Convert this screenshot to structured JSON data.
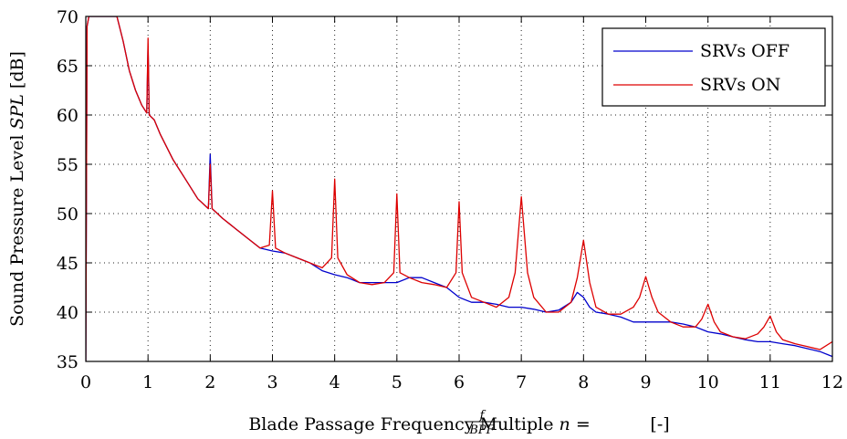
{
  "chart_data": {
    "type": "line",
    "xlabel": "Blade Passage Frequency Multiple",
    "xlabel_math": {
      "var": "n",
      "eq": "=",
      "num": "f",
      "den": "BPF",
      "unit": "[-]"
    },
    "ylabel": "Sound Pressure Level",
    "ylabel_math": {
      "var": "SPL",
      "unit": "[dB]"
    },
    "xlim": [
      0,
      12
    ],
    "ylim": [
      35,
      70
    ],
    "xticks": [
      0,
      1,
      2,
      3,
      4,
      5,
      6,
      7,
      8,
      9,
      10,
      11,
      12
    ],
    "yticks": [
      35,
      40,
      45,
      50,
      55,
      60,
      65,
      70
    ],
    "grid": true,
    "legend_position": "top-right",
    "series": [
      {
        "name": "SRVs OFF",
        "color": "#0000cc",
        "x": [
          0.0,
          0.02,
          0.05,
          0.1,
          0.2,
          0.3,
          0.4,
          0.5,
          0.6,
          0.7,
          0.8,
          0.9,
          0.98,
          1.0,
          1.02,
          1.1,
          1.2,
          1.4,
          1.6,
          1.8,
          1.97,
          2.0,
          2.03,
          2.2,
          2.4,
          2.6,
          2.8,
          3.0,
          3.2,
          3.4,
          3.6,
          3.8,
          4.0,
          4.2,
          4.4,
          4.6,
          4.8,
          5.0,
          5.2,
          5.4,
          5.6,
          5.8,
          6.0,
          6.2,
          6.4,
          6.6,
          6.8,
          7.0,
          7.2,
          7.4,
          7.6,
          7.8,
          7.9,
          8.0,
          8.1,
          8.2,
          8.4,
          8.6,
          8.8,
          9.0,
          9.2,
          9.4,
          9.6,
          9.8,
          10.0,
          10.2,
          10.4,
          10.6,
          10.8,
          11.0,
          11.2,
          11.4,
          11.6,
          11.8,
          12.0
        ],
        "y": [
          35.0,
          69.0,
          70.0,
          70.0,
          70.0,
          70.0,
          70.0,
          70.0,
          67.5,
          64.5,
          62.5,
          61.0,
          60.2,
          67.0,
          60.0,
          59.5,
          58.0,
          55.5,
          53.5,
          51.5,
          50.5,
          56.0,
          50.5,
          49.5,
          48.5,
          47.5,
          46.5,
          46.2,
          46.0,
          45.5,
          45.0,
          44.2,
          43.8,
          43.5,
          43.0,
          43.0,
          43.0,
          43.0,
          43.5,
          43.5,
          43.0,
          42.5,
          41.5,
          41.0,
          41.0,
          40.8,
          40.5,
          40.5,
          40.3,
          40.0,
          40.2,
          41.0,
          42.0,
          41.5,
          40.5,
          40.0,
          39.8,
          39.5,
          39.0,
          39.0,
          39.0,
          39.0,
          38.8,
          38.5,
          38.0,
          37.8,
          37.5,
          37.2,
          37.0,
          37.0,
          36.8,
          36.6,
          36.3,
          36.0,
          35.5
        ]
      },
      {
        "name": "SRVs ON",
        "color": "#dd0000",
        "x": [
          0.0,
          0.02,
          0.05,
          0.1,
          0.2,
          0.3,
          0.4,
          0.5,
          0.6,
          0.7,
          0.8,
          0.9,
          0.98,
          1.0,
          1.02,
          1.1,
          1.2,
          1.4,
          1.6,
          1.8,
          1.97,
          2.0,
          2.03,
          2.2,
          2.4,
          2.6,
          2.8,
          2.95,
          3.0,
          3.05,
          3.2,
          3.4,
          3.6,
          3.8,
          3.95,
          4.0,
          4.05,
          4.2,
          4.4,
          4.6,
          4.8,
          4.95,
          5.0,
          5.05,
          5.2,
          5.4,
          5.6,
          5.8,
          5.95,
          6.0,
          6.05,
          6.2,
          6.4,
          6.6,
          6.8,
          6.9,
          7.0,
          7.1,
          7.2,
          7.4,
          7.6,
          7.8,
          7.9,
          8.0,
          8.1,
          8.2,
          8.4,
          8.6,
          8.8,
          8.9,
          9.0,
          9.1,
          9.2,
          9.4,
          9.6,
          9.8,
          9.9,
          10.0,
          10.1,
          10.2,
          10.4,
          10.6,
          10.8,
          10.9,
          11.0,
          11.1,
          11.2,
          11.4,
          11.6,
          11.8,
          12.0
        ],
        "y": [
          35.0,
          69.0,
          70.0,
          70.0,
          70.0,
          70.0,
          70.0,
          70.0,
          67.5,
          64.5,
          62.5,
          61.0,
          60.2,
          67.8,
          60.0,
          59.5,
          58.0,
          55.5,
          53.5,
          51.5,
          50.5,
          55.0,
          50.5,
          49.5,
          48.5,
          47.5,
          46.5,
          46.8,
          52.3,
          46.5,
          46.0,
          45.5,
          45.0,
          44.5,
          45.5,
          53.5,
          45.5,
          43.8,
          43.0,
          42.8,
          43.0,
          44.0,
          52.0,
          44.0,
          43.5,
          43.0,
          42.8,
          42.5,
          44.0,
          51.2,
          44.0,
          41.5,
          41.0,
          40.5,
          41.5,
          44.0,
          51.7,
          44.0,
          41.5,
          40.0,
          40.0,
          41.0,
          43.5,
          47.3,
          43.0,
          40.5,
          39.8,
          39.8,
          40.5,
          41.5,
          43.6,
          41.5,
          40.0,
          39.0,
          38.5,
          38.5,
          39.3,
          40.8,
          39.0,
          38.0,
          37.5,
          37.3,
          37.8,
          38.5,
          39.6,
          38.0,
          37.2,
          36.8,
          36.5,
          36.2,
          37.0
        ]
      }
    ]
  }
}
